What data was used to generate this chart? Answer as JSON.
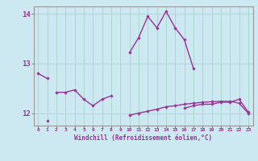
{
  "xlabel": "Windchill (Refroidissement éolien,°C)",
  "background_color": "#cce8f0",
  "grid_color": "#a8d8d0",
  "line_color": "#993399",
  "x_hours": [
    0,
    1,
    2,
    3,
    4,
    5,
    6,
    7,
    8,
    9,
    10,
    11,
    12,
    13,
    14,
    15,
    16,
    17,
    18,
    19,
    20,
    21,
    22,
    23
  ],
  "line1_y": [
    12.8,
    12.7,
    null,
    null,
    null,
    null,
    null,
    null,
    null,
    null,
    13.22,
    13.52,
    13.95,
    13.72,
    14.05,
    13.72,
    13.48,
    12.9,
    null,
    null,
    null,
    null,
    null,
    null
  ],
  "line2_y": [
    null,
    null,
    12.42,
    12.42,
    12.47,
    12.28,
    12.15,
    12.28,
    12.35,
    null,
    null,
    null,
    null,
    null,
    null,
    null,
    12.1,
    12.15,
    12.18,
    12.18,
    12.22,
    12.22,
    12.28,
    12.02
  ],
  "line3_y": [
    null,
    11.84,
    null,
    null,
    null,
    null,
    null,
    null,
    null,
    null,
    11.96,
    12.0,
    12.04,
    12.08,
    12.13,
    12.15,
    12.18,
    12.2,
    12.22,
    12.23,
    12.24,
    12.24,
    12.2,
    12.0
  ],
  "ylim": [
    11.75,
    14.15
  ],
  "yticks": [
    12,
    13,
    14
  ],
  "ytick_labels": [
    "12",
    "13",
    "14"
  ]
}
